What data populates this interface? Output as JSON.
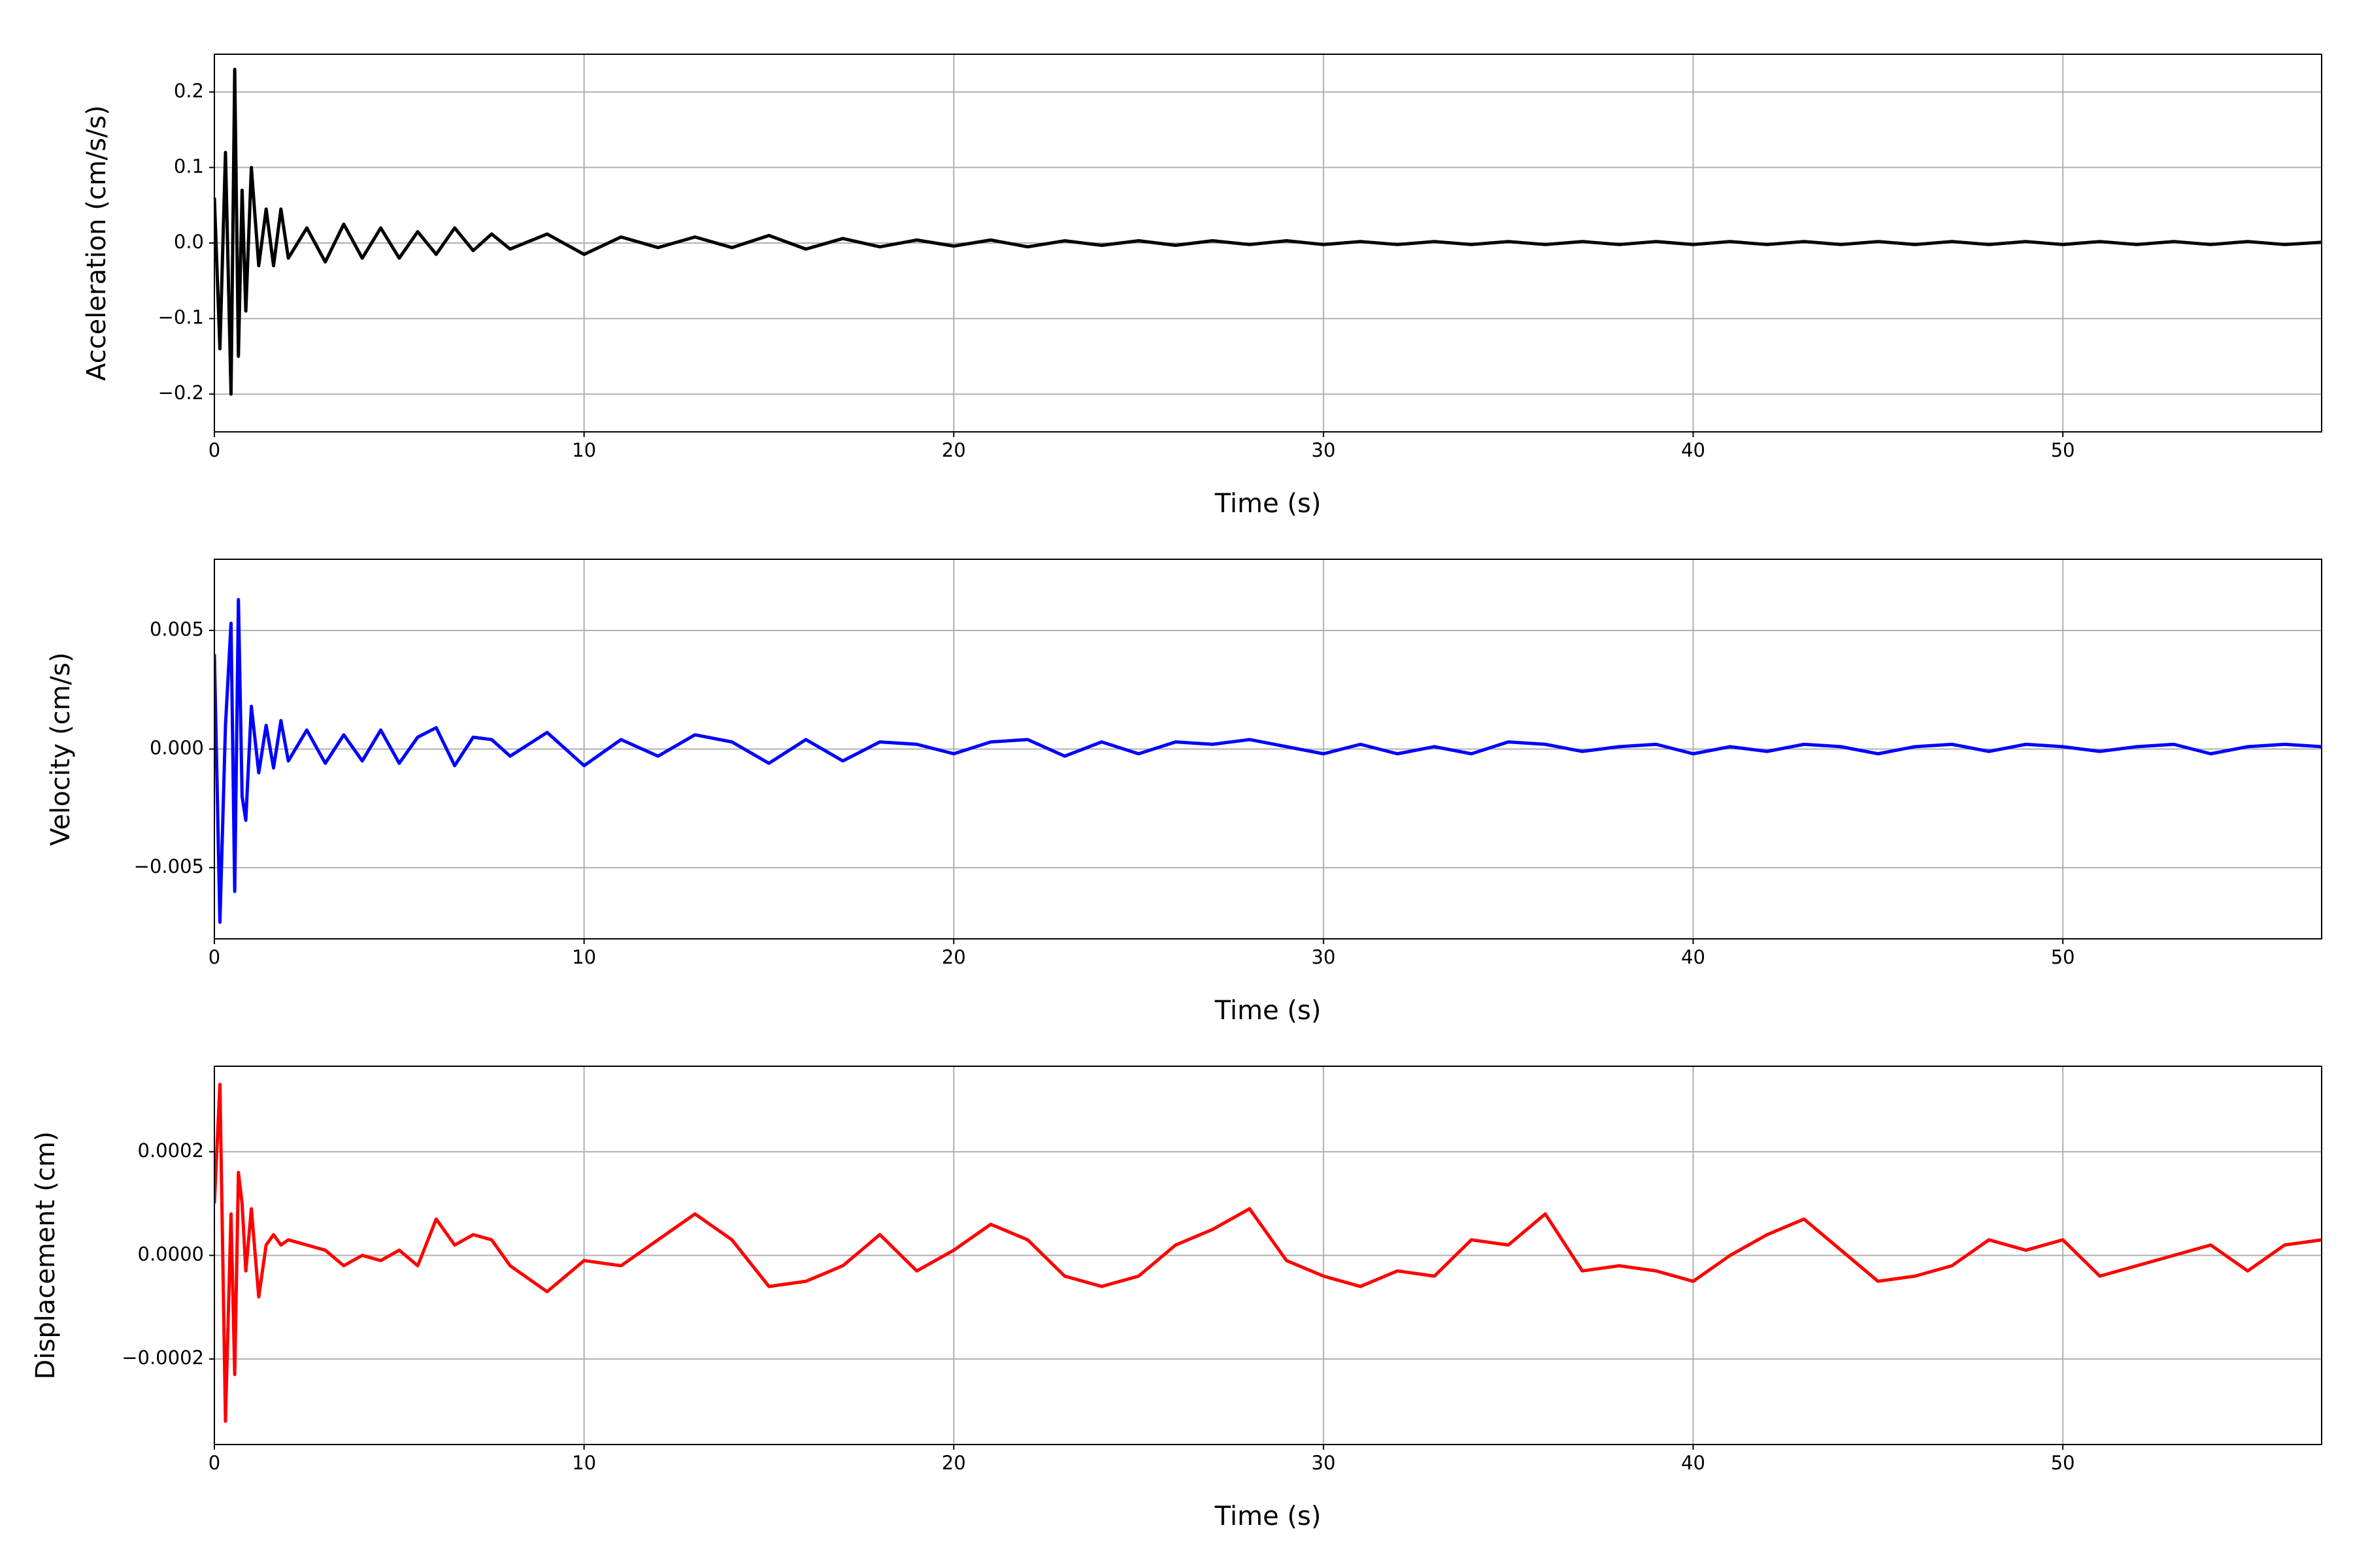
{
  "chart_data": [
    {
      "type": "line",
      "xlabel": "Time (s)",
      "ylabel": "Acceleration (cm/s/s)",
      "color": "#000000",
      "grid": true,
      "xlim": [
        0,
        57
      ],
      "ylim": [
        -0.25,
        0.25
      ],
      "xticks": [
        0,
        10,
        20,
        30,
        40,
        50
      ],
      "yticks": [
        {
          "value": -0.2,
          "label": "−0.2"
        },
        {
          "value": -0.1,
          "label": "−0.1"
        },
        {
          "value": 0,
          "label": "0.0"
        },
        0.1,
        0.2
      ],
      "x": [
        0,
        0.15,
        0.3,
        0.45,
        0.55,
        0.65,
        0.75,
        0.85,
        1.0,
        1.2,
        1.4,
        1.6,
        1.8,
        2.0,
        2.5,
        3,
        3.5,
        4,
        4.5,
        5,
        5.5,
        6,
        6.5,
        7,
        7.5,
        8,
        9,
        10,
        11,
        12,
        13,
        14,
        15,
        16,
        17,
        18,
        19,
        20,
        21,
        22,
        23,
        24,
        25,
        26,
        27,
        28,
        29,
        30,
        31,
        32,
        33,
        34,
        35,
        36,
        37,
        38,
        39,
        40,
        41,
        42,
        43,
        44,
        45,
        46,
        47,
        48,
        49,
        50,
        51,
        52,
        53,
        54,
        55,
        56,
        57
      ],
      "values": [
        0.06,
        -0.14,
        0.12,
        -0.2,
        0.23,
        -0.15,
        0.07,
        -0.09,
        0.1,
        -0.03,
        0.045,
        -0.03,
        0.045,
        -0.02,
        0.02,
        -0.025,
        0.025,
        -0.02,
        0.02,
        -0.02,
        0.015,
        -0.015,
        0.02,
        -0.01,
        0.012,
        -0.008,
        0.012,
        -0.015,
        0.008,
        -0.006,
        0.008,
        -0.006,
        0.01,
        -0.008,
        0.006,
        -0.005,
        0.004,
        -0.004,
        0.004,
        -0.005,
        0.003,
        -0.003,
        0.003,
        -0.003,
        0.003,
        -0.002,
        0.003,
        -0.002,
        0.002,
        -0.002,
        0.002,
        -0.002,
        0.002,
        -0.002,
        0.002,
        -0.002,
        0.002,
        -0.002,
        0.002,
        -0.002,
        0.002,
        -0.002,
        0.002,
        -0.002,
        0.002,
        -0.002,
        0.002,
        -0.002,
        0.002,
        -0.002,
        0.002,
        -0.002,
        0.002,
        -0.002,
        0.001
      ]
    },
    {
      "type": "line",
      "xlabel": "Time (s)",
      "ylabel": "Velocity (cm/s)",
      "color": "#0000ff",
      "grid": true,
      "xlim": [
        0,
        57
      ],
      "ylim": [
        -0.008,
        0.008
      ],
      "xticks": [
        0,
        10,
        20,
        30,
        40,
        50
      ],
      "yticks": [
        {
          "value": -0.005,
          "label": "−0.005"
        },
        {
          "value": 0,
          "label": "0.000"
        },
        0.005
      ],
      "x": [
        0,
        0.15,
        0.3,
        0.45,
        0.55,
        0.65,
        0.75,
        0.85,
        1.0,
        1.2,
        1.4,
        1.6,
        1.8,
        2.0,
        2.5,
        3,
        3.5,
        4,
        4.5,
        5,
        5.5,
        6,
        6.5,
        7,
        7.5,
        8,
        9,
        10,
        11,
        12,
        13,
        14,
        15,
        16,
        17,
        18,
        19,
        20,
        21,
        22,
        23,
        24,
        25,
        26,
        27,
        28,
        29,
        30,
        31,
        32,
        33,
        34,
        35,
        36,
        37,
        38,
        39,
        40,
        41,
        42,
        43,
        44,
        45,
        46,
        47,
        48,
        49,
        50,
        51,
        52,
        53,
        54,
        55,
        56,
        57
      ],
      "values": [
        0.004,
        -0.0073,
        0.001,
        0.0053,
        -0.006,
        0.0063,
        -0.002,
        -0.003,
        0.0018,
        -0.001,
        0.001,
        -0.0008,
        0.0012,
        -0.0005,
        0.0008,
        -0.0006,
        0.0006,
        -0.0005,
        0.0008,
        -0.0006,
        0.0005,
        0.0009,
        -0.0007,
        0.0005,
        0.0004,
        -0.0003,
        0.0007,
        -0.0007,
        0.0004,
        -0.0003,
        0.0006,
        0.0003,
        -0.0006,
        0.0004,
        -0.0005,
        0.0003,
        0.0002,
        -0.0002,
        0.0003,
        0.0004,
        -0.0003,
        0.0003,
        -0.0002,
        0.0003,
        0.0002,
        0.0004,
        0.0001,
        -0.0002,
        0.0002,
        -0.0002,
        0.0001,
        -0.0002,
        0.0003,
        0.0002,
        -0.0001,
        0.0001,
        0.0002,
        -0.0002,
        0.0001,
        -0.0001,
        0.0002,
        0.0001,
        -0.0002,
        0.0001,
        0.0002,
        -0.0001,
        0.0002,
        0.0001,
        -0.0001,
        0.0001,
        0.0002,
        -0.0002,
        0.0001,
        0.0002,
        0.0001
      ]
    },
    {
      "type": "line",
      "xlabel": "Time (s)",
      "ylabel": "Displacement (cm)",
      "color": "#ff0000",
      "grid": true,
      "xlim": [
        0,
        57
      ],
      "ylim": [
        -0.000365,
        0.000365
      ],
      "xticks": [
        0,
        10,
        20,
        30,
        40,
        50
      ],
      "yticks": [
        {
          "value": -0.0002,
          "label": "−0.0002"
        },
        {
          "value": 0,
          "label": "0.0000"
        },
        0.0002
      ],
      "x": [
        0,
        0.15,
        0.3,
        0.45,
        0.55,
        0.65,
        0.75,
        0.85,
        1.0,
        1.2,
        1.4,
        1.6,
        1.8,
        2.0,
        2.5,
        3,
        3.5,
        4,
        4.5,
        5,
        5.5,
        6,
        6.5,
        7,
        7.5,
        8,
        9,
        10,
        11,
        12,
        13,
        14,
        15,
        16,
        17,
        18,
        19,
        20,
        21,
        22,
        23,
        24,
        25,
        26,
        27,
        28,
        29,
        30,
        31,
        32,
        33,
        34,
        35,
        36,
        37,
        38,
        39,
        40,
        41,
        42,
        43,
        44,
        45,
        46,
        47,
        48,
        49,
        50,
        51,
        52,
        53,
        54,
        55,
        56,
        57
      ],
      "values": [
        0.0001,
        0.00033,
        -0.00032,
        8e-05,
        -0.00023,
        0.00016,
        0.0001,
        -3e-05,
        9e-05,
        -8e-05,
        2e-05,
        4e-05,
        2e-05,
        3e-05,
        2e-05,
        1e-05,
        -2e-05,
        0,
        -1e-05,
        1e-05,
        -2e-05,
        7e-05,
        2e-05,
        4e-05,
        3e-05,
        -2e-05,
        -7e-05,
        -1e-05,
        -2e-05,
        3e-05,
        8e-05,
        3e-05,
        -6e-05,
        -5e-05,
        -2e-05,
        4e-05,
        -3e-05,
        1e-05,
        6e-05,
        3e-05,
        -4e-05,
        -6e-05,
        -4e-05,
        2e-05,
        5e-05,
        9e-05,
        -1e-05,
        -4e-05,
        -6e-05,
        -3e-05,
        -4e-05,
        3e-05,
        2e-05,
        8e-05,
        -3e-05,
        -2e-05,
        -3e-05,
        -5e-05,
        0,
        4e-05,
        7e-05,
        1e-05,
        -5e-05,
        -4e-05,
        -2e-05,
        3e-05,
        1e-05,
        3e-05,
        -4e-05,
        -2e-05,
        0,
        2e-05,
        -3e-05,
        2e-05,
        3e-05
      ]
    }
  ]
}
